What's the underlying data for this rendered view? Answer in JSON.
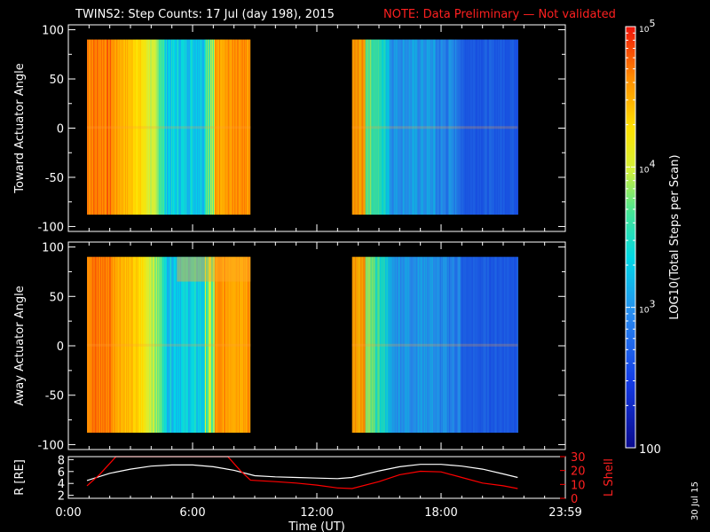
{
  "header": {
    "title": "TWINS2: Step Counts: 17 Jul (day 198), 2015",
    "note": "NOTE: Data Preliminary — Not validated",
    "note_color": "#ff0000"
  },
  "side_date": "30 Jul 15",
  "colorbar": {
    "label": "LOG10(Total Steps per Scan)",
    "ticks": [
      "10^5",
      "10^4",
      "10^3",
      "100"
    ],
    "scale": "log",
    "range": [
      100,
      100000
    ]
  },
  "chart_data": [
    {
      "type": "heatmap",
      "ylabel": "Toward Actuator Angle",
      "ylim": [
        -105,
        105
      ],
      "yticks": [
        "100",
        "50",
        "0",
        "-50",
        "-100"
      ],
      "y_extent": [
        -88,
        90
      ],
      "x_range_hours": [
        0,
        24
      ],
      "data_blocks_hours": [
        [
          0.9,
          8.8
        ],
        [
          13.7,
          21.7
        ]
      ],
      "colormap": "rainbow"
    },
    {
      "type": "heatmap",
      "ylabel": "Away Actuator Angle",
      "ylim": [
        -105,
        105
      ],
      "yticks": [
        "100",
        "50",
        "0",
        "-50",
        "-100"
      ],
      "y_extent": [
        -88,
        90
      ],
      "x_range_hours": [
        0,
        24
      ],
      "data_blocks_hours": [
        [
          0.9,
          8.8
        ],
        [
          13.7,
          21.7
        ]
      ],
      "colormap": "rainbow"
    },
    {
      "type": "line",
      "ylabel": "R [RE]",
      "ylabel_right": "L Shell",
      "ylim": [
        1.5,
        8.5
      ],
      "ylim_right": [
        0,
        30
      ],
      "yticks_left": [
        "8",
        "6",
        "4",
        "2"
      ],
      "yticks_right": [
        "30",
        "20",
        "10",
        "0"
      ],
      "xlabel": "Time (UT)",
      "xticks": [
        "0:00",
        "6:00",
        "12:00",
        "18:00",
        "23:59"
      ],
      "series": [
        {
          "color": "#ffffff",
          "axis": "left",
          "x": [
            0.9,
            2,
            3,
            4,
            5,
            6,
            7,
            8,
            9,
            10,
            11,
            12,
            13,
            13.7,
            15,
            16,
            17,
            18,
            19,
            20,
            21,
            21.7
          ],
          "y": [
            4.5,
            5.7,
            6.4,
            6.9,
            7.1,
            7.1,
            6.8,
            6.2,
            5.3,
            5.1,
            5.0,
            4.9,
            4.8,
            5.0,
            6.1,
            6.8,
            7.2,
            7.2,
            6.9,
            6.4,
            5.6,
            5.0
          ]
        },
        {
          "color": "#ff0000",
          "axis": "right",
          "x": [
            0.9,
            1.5,
            2.3,
            7.7,
            8.3,
            8.8,
            10,
            11,
            12,
            13,
            13.7,
            15,
            16,
            17,
            18,
            19,
            20,
            21,
            21.7
          ],
          "y": [
            9,
            17,
            30,
            30,
            20,
            13,
            12,
            11,
            9.5,
            7.5,
            7,
            12,
            17,
            19.5,
            19,
            15,
            11,
            9,
            7
          ]
        }
      ]
    }
  ]
}
